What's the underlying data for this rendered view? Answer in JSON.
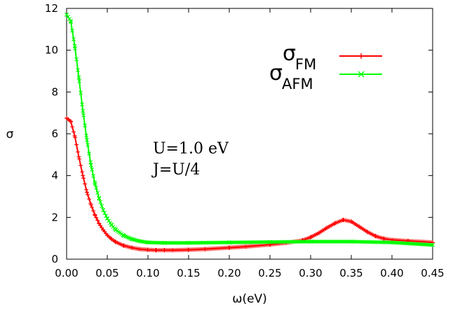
{
  "chart_data": {
    "type": "line",
    "xlabel": "ω(eV)",
    "ylabel": "σ",
    "xlim": [
      0.0,
      0.45
    ],
    "ylim": [
      0,
      12
    ],
    "x_ticks": [
      "0.00",
      "0.05",
      "0.10",
      "0.15",
      "0.20",
      "0.25",
      "0.30",
      "0.35",
      "0.40",
      "0.45"
    ],
    "y_ticks": [
      "0",
      "2",
      "4",
      "6",
      "8",
      "10",
      "12"
    ],
    "grid": false,
    "legend_position": "top-right",
    "annotations": [
      "U=1.0 eV",
      "J=U/4"
    ],
    "series": [
      {
        "name": "σFM",
        "legend_main": "σ",
        "legend_sub": "FM",
        "color": "#ff0000",
        "marker": "plus",
        "x": [
          0.0,
          0.005,
          0.01,
          0.015,
          0.02,
          0.025,
          0.03,
          0.035,
          0.04,
          0.045,
          0.05,
          0.055,
          0.06,
          0.07,
          0.08,
          0.09,
          0.1,
          0.11,
          0.12,
          0.13,
          0.15,
          0.17,
          0.2,
          0.22,
          0.25,
          0.27,
          0.29,
          0.3,
          0.31,
          0.32,
          0.33,
          0.34,
          0.35,
          0.36,
          0.37,
          0.38,
          0.39,
          0.4,
          0.42,
          0.45
        ],
        "y": [
          6.75,
          6.6,
          5.9,
          4.9,
          4.0,
          3.2,
          2.6,
          2.1,
          1.7,
          1.4,
          1.15,
          0.97,
          0.83,
          0.65,
          0.55,
          0.48,
          0.45,
          0.43,
          0.43,
          0.43,
          0.45,
          0.48,
          0.55,
          0.6,
          0.7,
          0.78,
          0.9,
          1.05,
          1.25,
          1.5,
          1.72,
          1.88,
          1.8,
          1.55,
          1.3,
          1.1,
          0.98,
          0.92,
          0.87,
          0.8
        ]
      },
      {
        "name": "σAFM",
        "legend_main": "σ",
        "legend_sub": "AFM",
        "color": "#00ff00",
        "marker": "x",
        "x": [
          0.0,
          0.005,
          0.01,
          0.015,
          0.02,
          0.025,
          0.03,
          0.035,
          0.04,
          0.045,
          0.05,
          0.055,
          0.06,
          0.07,
          0.08,
          0.09,
          0.1,
          0.12,
          0.15,
          0.2,
          0.25,
          0.3,
          0.35,
          0.4,
          0.45
        ],
        "y": [
          11.7,
          11.4,
          10.2,
          8.7,
          7.1,
          5.7,
          4.5,
          3.6,
          2.9,
          2.35,
          1.95,
          1.65,
          1.42,
          1.13,
          0.96,
          0.86,
          0.8,
          0.78,
          0.78,
          0.8,
          0.82,
          0.84,
          0.84,
          0.8,
          0.68
        ]
      }
    ]
  }
}
